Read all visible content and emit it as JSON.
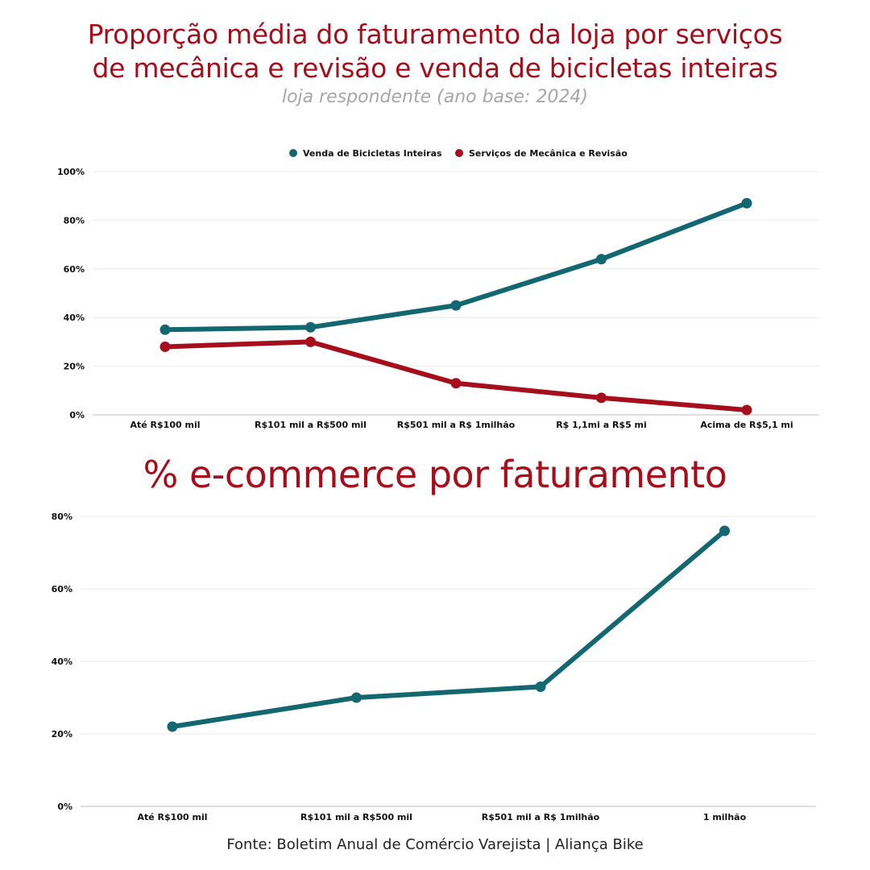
{
  "colors": {
    "teal": "#136770",
    "red": "#a50e1a",
    "grid": "#e9e9e9",
    "axis": "#bdbdbd"
  },
  "header": {
    "title_line1": "Proporção média do faturamento da loja por serviços",
    "title_line2": "de mecânica e revisão e venda de bicicletas inteiras",
    "subtitle": "loja respondente (ano base: 2024)"
  },
  "section2": {
    "title": "% e-commerce por faturamento"
  },
  "footer": {
    "source": "Fonte: Boletim Anual de Comércio Varejista | Aliança Bike"
  },
  "chart_data": [
    {
      "type": "line",
      "title": "Proporção média do faturamento da loja por serviços de mecânica e revisão e venda de bicicletas inteiras",
      "subtitle": "loja respondente (ano base: 2024)",
      "categories": [
        "Até R$100 mil",
        "R$101 mil a R$500 mil",
        "R$501 mil a R$ 1milhão",
        "R$ 1,1mi a R$5 mi",
        "Acima de R$5,1 mi"
      ],
      "series": [
        {
          "name": "Venda de Bicicletas Inteiras",
          "color": "#136770",
          "values": [
            35,
            36,
            45,
            64,
            87
          ]
        },
        {
          "name": "Serviços de Mecânica e Revisão",
          "color": "#a50e1a",
          "values": [
            28,
            30,
            13,
            7,
            2
          ]
        }
      ],
      "ylim": [
        0,
        100
      ],
      "yticks": [
        0,
        20,
        40,
        60,
        80,
        100
      ],
      "ytick_labels": [
        "0%",
        "20%",
        "40%",
        "60%",
        "80%",
        "100%"
      ],
      "grid": true,
      "legend": "top-center"
    },
    {
      "type": "line",
      "title": "% e-commerce por faturamento",
      "categories": [
        "Até R$100 mil",
        "R$101 mil a R$500 mil",
        "R$501 mil a R$ 1milhão",
        "1 milhão"
      ],
      "series": [
        {
          "color": "#136770",
          "values": [
            22,
            30,
            33,
            76
          ]
        }
      ],
      "ylim": [
        0,
        80
      ],
      "yticks": [
        0,
        20,
        40,
        60,
        80
      ],
      "ytick_labels": [
        "0%",
        "20%",
        "40%",
        "60%",
        "80%"
      ],
      "grid": true,
      "legend": "none"
    }
  ]
}
